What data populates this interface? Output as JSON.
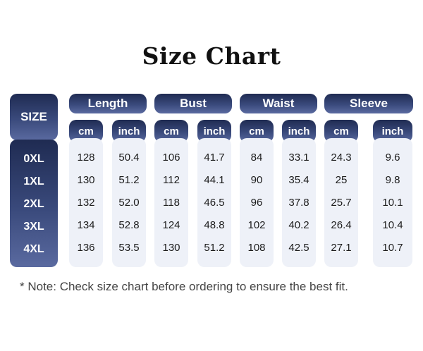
{
  "title": "Size Chart",
  "size_header": "SIZE",
  "sizes": [
    "0XL",
    "1XL",
    "2XL",
    "3XL",
    "4XL"
  ],
  "groups": [
    {
      "label": "Length",
      "units": [
        "cm",
        "inch"
      ],
      "cm": [
        "128",
        "130",
        "132",
        "134",
        "136"
      ],
      "inch": [
        "50.4",
        "51.2",
        "52.0",
        "52.8",
        "53.5"
      ]
    },
    {
      "label": "Bust",
      "units": [
        "cm",
        "inch"
      ],
      "cm": [
        "106",
        "112",
        "118",
        "124",
        "130"
      ],
      "inch": [
        "41.7",
        "44.1",
        "46.5",
        "48.8",
        "51.2"
      ]
    },
    {
      "label": "Waist",
      "units": [
        "cm",
        "inch"
      ],
      "cm": [
        "84",
        "90",
        "96",
        "102",
        "108"
      ],
      "inch": [
        "33.1",
        "35.4",
        "37.8",
        "40.2",
        "42.5"
      ]
    },
    {
      "label": "Sleeve",
      "units": [
        "cm",
        "inch"
      ],
      "cm": [
        "24.3",
        "25",
        "25.7",
        "26.4",
        "27.1"
      ],
      "inch": [
        "9.6",
        "9.8",
        "10.1",
        "10.4",
        "10.7"
      ]
    }
  ],
  "note": "* Note: Check size chart before ordering to ensure the best fit.",
  "colors": {
    "navy": "#1f2b52",
    "navy_light": "#5a6aa0",
    "cell_bg": "#eef1f8"
  }
}
